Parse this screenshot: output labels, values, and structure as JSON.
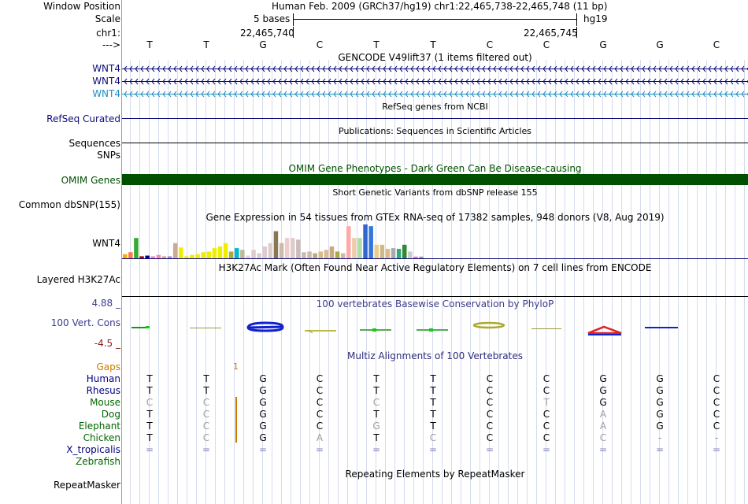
{
  "header": {
    "window_position_label": "Window Position",
    "window_position_value": "Human Feb. 2009 (GRCh37/hg19)   chr1:22,465,738-22,465,748 (11 bp)",
    "scale_label": "Scale",
    "scale_bases": "5 bases",
    "scale_assembly": "hg19",
    "chrom_label": "chr1:",
    "coord_left": "22,465,740",
    "coord_right": "22,465,745",
    "strand_label": "--->"
  },
  "sequence": [
    "T",
    "T",
    "G",
    "C",
    "T",
    "T",
    "C",
    "C",
    "G",
    "G",
    "C"
  ],
  "gencode": {
    "title": "GENCODE V49lift37 (1 items filtered out)",
    "items": [
      "WNT4",
      "WNT4",
      "WNT4"
    ],
    "colors": [
      "#0c0c78",
      "#0c0c78",
      "#1f8fbf"
    ]
  },
  "refseq": {
    "title": "RefSeq genes from NCBI",
    "label": "RefSeq Curated"
  },
  "pubs": {
    "title": "Publications: Sequences in Scientific Articles",
    "label1": "Sequences",
    "label2": "SNPs"
  },
  "omim": {
    "title": "OMIM Gene Phenotypes - Dark Green Can Be Disease-causing",
    "label": "OMIM Genes",
    "color": "#005000"
  },
  "dbsnp": {
    "title": "Short Genetic Variants from dbSNP release 155",
    "label": "Common dbSNP(155)"
  },
  "gtex": {
    "title": "Gene Expression in 54 tissues from GTEx RNA-seq of 17382 samples, 948 donors (V8, Aug 2019)",
    "label": "WNT4",
    "values": [
      0.12,
      0.18,
      0.6,
      0.06,
      0.08,
      0.06,
      0.1,
      0.06,
      0.06,
      0.45,
      0.32,
      0.06,
      0.1,
      0.12,
      0.18,
      0.2,
      0.3,
      0.35,
      0.45,
      0.2,
      0.3,
      0.25,
      0.08,
      0.25,
      0.15,
      0.35,
      0.45,
      0.8,
      0.45,
      0.6,
      0.6,
      0.55,
      0.18,
      0.2,
      0.15,
      0.2,
      0.25,
      0.35,
      0.2,
      0.15,
      0.95,
      0.6,
      0.6,
      1.0,
      0.95,
      0.4,
      0.4,
      0.28,
      0.3,
      0.28,
      0.4,
      0.2,
      0.05,
      0.05
    ],
    "colors": [
      "#ffaa00",
      "#ff7744",
      "#33aa33",
      "#aa0000",
      "#000088",
      "#ee88cc",
      "#ff88aa",
      "#ccaa88",
      "#aa88cc",
      "#ccaa99",
      "#eeee00",
      "#eeee00",
      "#eeee00",
      "#eeee00",
      "#eeee00",
      "#eeee00",
      "#eeee00",
      "#eeee00",
      "#eeee00",
      "#aaaa44",
      "#00bbcc",
      "#bbbb99",
      "#eeccdd",
      "#ddcccc",
      "#ddcccc",
      "#ddcccc",
      "#ddcccc",
      "#887755",
      "#ccbbaa",
      "#eecccc",
      "#ddcccc",
      "#ccbbbb",
      "#ccbbaa",
      "#ccbbaa",
      "#bbaa88",
      "#ddbb88",
      "#ddbb99",
      "#ccaa77",
      "#aaaa44",
      "#ccbbaa",
      "#ffaaaa",
      "#eeccaa",
      "#aaddaa",
      "#3366cc",
      "#3377dd",
      "#eecc88",
      "#ccbb88",
      "#ddbb88",
      "#aaaaaa",
      "#33aa77",
      "#338833",
      "#cccccc",
      "#ee66ee",
      "#999999"
    ]
  },
  "h3k27ac": {
    "title": "H3K27Ac Mark (Often Found Near Active Regulatory Elements) on 7 cell lines from ENCODE",
    "label": "Layered H3K27Ac"
  },
  "cons": {
    "title": "100 vertebrates Basewise Conservation by PhyloP",
    "label": "100 Vert. Cons",
    "ymax": "4.88 _",
    "ymin": "-4.5 _"
  },
  "multiz": {
    "title": "Multiz Alignments of 100 Vertebrates",
    "gaps_label": "Gaps",
    "gaps_marker": "1",
    "species": [
      {
        "name": "Human",
        "color": "#000080",
        "bases": [
          "T",
          "T",
          "G",
          "C",
          "T",
          "T",
          "C",
          "C",
          "G",
          "G",
          "C"
        ],
        "faint": [
          0,
          0,
          0,
          0,
          0,
          0,
          0,
          0,
          0,
          0,
          0
        ]
      },
      {
        "name": "Rhesus",
        "color": "#000080",
        "bases": [
          "T",
          "T",
          "G",
          "C",
          "T",
          "T",
          "C",
          "C",
          "G",
          "G",
          "C"
        ],
        "faint": [
          0,
          0,
          0,
          0,
          0,
          0,
          0,
          0,
          0,
          0,
          0
        ]
      },
      {
        "name": "Mouse",
        "color": "#006600",
        "bases": [
          "C",
          "C",
          "G",
          "C",
          "C",
          "T",
          "C",
          "T",
          "G",
          "G",
          "C"
        ],
        "faint": [
          1,
          1,
          0,
          0,
          1,
          0,
          0,
          1,
          0,
          0,
          0
        ]
      },
      {
        "name": "Dog",
        "color": "#006600",
        "bases": [
          "T",
          "C",
          "G",
          "C",
          "T",
          "T",
          "C",
          "C",
          "A",
          "G",
          "C"
        ],
        "faint": [
          0,
          1,
          0,
          0,
          0,
          0,
          0,
          0,
          1,
          0,
          0
        ]
      },
      {
        "name": "Elephant",
        "color": "#006600",
        "bases": [
          "T",
          "C",
          "G",
          "C",
          "G",
          "T",
          "C",
          "C",
          "A",
          "G",
          "C"
        ],
        "faint": [
          0,
          1,
          0,
          0,
          1,
          0,
          0,
          0,
          1,
          0,
          0
        ]
      },
      {
        "name": "Chicken",
        "color": "#006600",
        "bases": [
          "T",
          "C",
          "G",
          "A",
          "T",
          "C",
          "C",
          "C",
          "C",
          "-",
          "-"
        ],
        "faint": [
          0,
          1,
          0,
          1,
          0,
          1,
          0,
          0,
          1,
          1,
          1
        ]
      },
      {
        "name": "X_tropicalis",
        "color": "#000080",
        "bases": [
          "=",
          "=",
          "=",
          "=",
          "=",
          "=",
          "=",
          "=",
          "=",
          "=",
          "="
        ],
        "faint": [
          1,
          1,
          1,
          1,
          1,
          1,
          1,
          1,
          1,
          1,
          1
        ]
      },
      {
        "name": "Zebrafish",
        "color": "#006600",
        "bases": [
          "",
          "",
          "",
          "",
          "",
          "",
          "",
          "",
          "",
          "",
          ""
        ],
        "faint": [
          0,
          0,
          0,
          0,
          0,
          0,
          0,
          0,
          0,
          0,
          0
        ]
      }
    ]
  },
  "repeatmasker": {
    "title": "Repeating Elements by RepeatMasker",
    "label": "RepeatMasker"
  }
}
